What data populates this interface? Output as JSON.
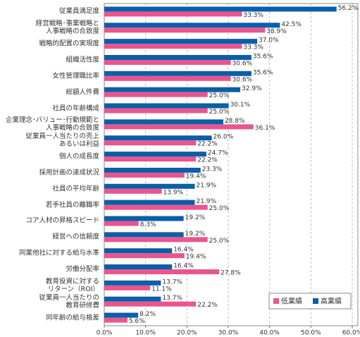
{
  "chart_data": {
    "type": "hbar",
    "categories": [
      "従業員満足度",
      "経営戦略･事業戦略と\n人事戦略の合致度",
      "戦略的配置の実現度",
      "組織活性度",
      "女性管理職比率",
      "総額人件費",
      "社員の年齢構成",
      "企業理念･バリュー･行動規範と\n人事戦略の合致度",
      "従業員一人当たりの売上\nあるいは利益",
      "個人の成長度",
      "採用計画の達成状況",
      "社員の平均年齢",
      "若手社員の離職率",
      "コア人材の昇格スピード",
      "経営への信頼度",
      "同業他社に対する給与水準",
      "労働分配率",
      "教育投資に対する\nリターン（ROI）",
      "従業員一人当たりの\n教育研修費",
      "同年齢の給与格差"
    ],
    "series": [
      {
        "name": "高業績",
        "color": "#0b5ea8",
        "values": [
          56.2,
          42.5,
          37.0,
          35.6,
          35.6,
          32.9,
          30.1,
          28.8,
          26.0,
          24.7,
          23.3,
          21.9,
          21.9,
          19.2,
          19.2,
          16.4,
          16.4,
          13.7,
          13.7,
          8.2
        ],
        "value_labels": [
          "56.2%",
          "42.5%",
          "37.0%",
          "35.6%",
          "35.6%",
          "32.9%",
          "30.1%",
          "28.8%",
          "26.0%",
          "24.7%",
          "23.3%",
          "21.9%",
          "21.9%",
          "19.2%",
          "19.2%",
          "16.4%",
          "16.4%",
          "13.7%",
          "13.7%",
          "8.2%"
        ]
      },
      {
        "name": "低業績",
        "color": "#e9558f",
        "values": [
          33.3,
          38.9,
          33.3,
          30.6,
          30.6,
          25.0,
          25.0,
          36.1,
          22.2,
          22.2,
          19.4,
          13.9,
          25.0,
          8.3,
          25.0,
          19.4,
          27.8,
          11.1,
          22.2,
          5.6
        ],
        "value_labels": [
          "33.3%",
          "38.9%",
          "33.3%",
          "30.6%",
          "30.6%",
          "25.0%",
          "25.0%",
          "36.1%",
          "22.2%",
          "22.2%",
          "19.4%",
          "13.9%",
          "25.0%",
          "8.3%",
          "25.0%",
          "19.4%",
          "27.8%",
          "11.1%",
          "22.2%",
          "5.6%"
        ]
      }
    ],
    "xlim": [
      0,
      60
    ],
    "xticks": [
      {
        "value": 0,
        "label": "0.0%"
      },
      {
        "value": 10,
        "label": "10.0%"
      },
      {
        "value": 20,
        "label": "20.0%"
      },
      {
        "value": 30,
        "label": "30.0%"
      },
      {
        "value": 40,
        "label": "40.0%"
      },
      {
        "value": 50,
        "label": "50.0%"
      },
      {
        "value": 60,
        "label": "60.0%"
      }
    ],
    "grid": true,
    "legend": "lower right"
  }
}
